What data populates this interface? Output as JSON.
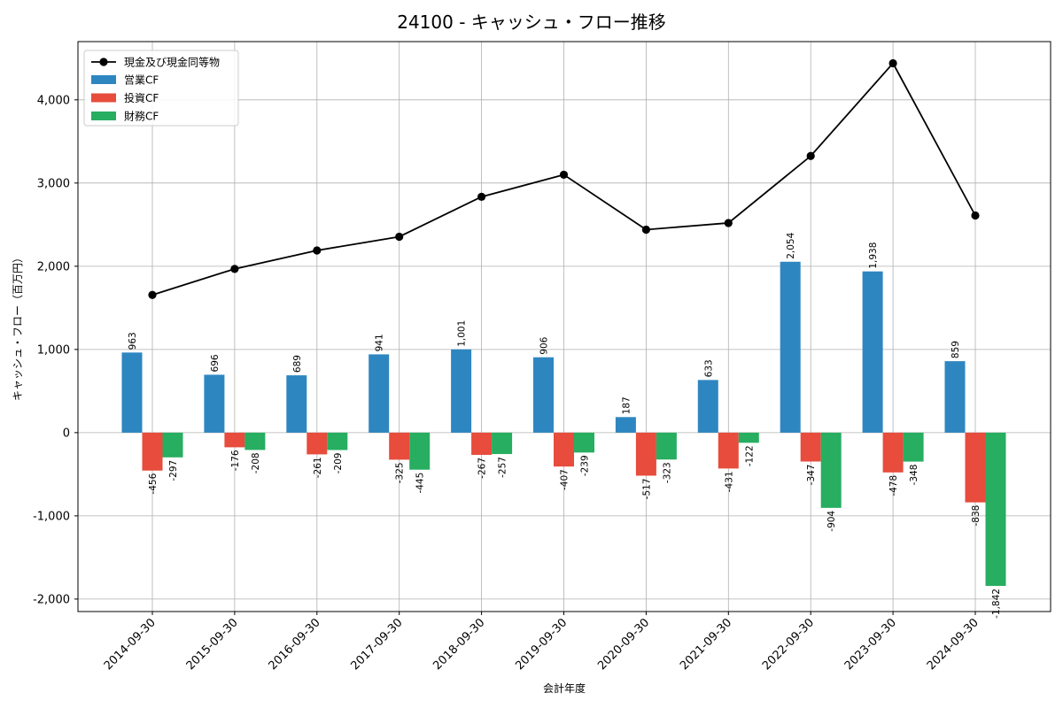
{
  "chart_data": {
    "type": "bar",
    "title": "24100 - キャッシュ・フロー推移",
    "xlabel": "会計年度",
    "ylabel": "キャッシュ・フロー（百万円）",
    "ylim": [
      -2150,
      4700
    ],
    "yticks": [
      -2000,
      -1000,
      0,
      1000,
      2000,
      3000,
      4000
    ],
    "ytick_labels": [
      "-2,000",
      "-1,000",
      "0",
      "1,000",
      "2,000",
      "3,000",
      "4,000"
    ],
    "grid": true,
    "legend_position": "top-left",
    "categories": [
      "2014-09-30",
      "2015-09-30",
      "2016-09-30",
      "2017-09-30",
      "2018-09-30",
      "2019-09-30",
      "2020-09-30",
      "2021-09-30",
      "2022-09-30",
      "2023-09-30",
      "2024-09-30"
    ],
    "series": [
      {
        "name": "営業CF",
        "kind": "bar",
        "color": "#2e86c1",
        "values": [
          963,
          696,
          689,
          941,
          1001,
          906,
          187,
          633,
          2054,
          1938,
          859
        ],
        "labels": [
          "963",
          "696",
          "689",
          "941",
          "1,001",
          "906",
          "187",
          "633",
          "2,054",
          "1,938",
          "859"
        ]
      },
      {
        "name": "投資CF",
        "kind": "bar",
        "color": "#e74c3c",
        "values": [
          -456,
          -176,
          -261,
          -325,
          -267,
          -407,
          -517,
          -431,
          -347,
          -478,
          -838
        ],
        "labels": [
          "-456",
          "-176",
          "-261",
          "-325",
          "-267",
          "-407",
          "-517",
          "-431",
          "-347",
          "-478",
          "-838"
        ]
      },
      {
        "name": "財務CF",
        "kind": "bar",
        "color": "#27ae60",
        "values": [
          -297,
          -208,
          -209,
          -445,
          -257,
          -239,
          -323,
          -122,
          -904,
          -348,
          -1842
        ],
        "labels": [
          "-297",
          "-208",
          "-209",
          "-445",
          "-257",
          "-239",
          "-323",
          "-122",
          "-904",
          "-348",
          "-1,842"
        ]
      },
      {
        "name": "現金及び現金同等物",
        "kind": "line",
        "color": "#000000",
        "values": [
          1655,
          1968,
          2190,
          2355,
          2835,
          3100,
          2440,
          2520,
          3325,
          4440,
          2610
        ]
      }
    ]
  }
}
